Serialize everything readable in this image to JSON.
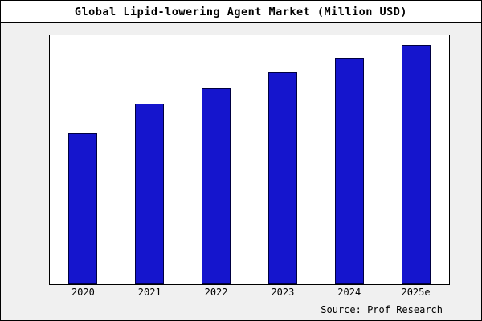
{
  "header": {
    "title": "Global Lipid-lowering Agent Market (Million USD)"
  },
  "footer": {
    "source": "Source: Prof Research"
  },
  "colors": {
    "bar_fill": "#1515cd",
    "bar_border": "#000040",
    "page_background": "#f0f0f0",
    "plot_background": "#ffffff",
    "frame_border": "#000000"
  },
  "chart_data": {
    "type": "bar",
    "title": "Global Lipid-lowering Agent Market (Million USD)",
    "categories": [
      "2020",
      "2021",
      "2022",
      "2023",
      "2024",
      "2025e"
    ],
    "values": [
      63,
      75.5,
      82,
      88.5,
      94.5,
      100
    ],
    "xlabel": "",
    "ylabel": "",
    "ylim": [
      0,
      104
    ],
    "grid": false,
    "legend": false,
    "y_axis_tick_labels_visible": false,
    "annotation": "Source: Prof Research"
  }
}
